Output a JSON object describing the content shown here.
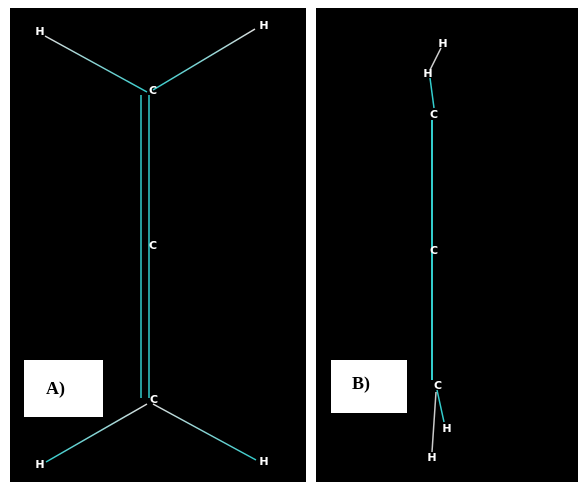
{
  "panels": [
    {
      "label": "A)",
      "atoms": [
        "H",
        "H",
        "C",
        "C",
        "C",
        "H",
        "H"
      ]
    },
    {
      "label": "B)",
      "atoms": [
        "H",
        "H",
        "C",
        "C",
        "C",
        "H",
        "H"
      ]
    }
  ]
}
